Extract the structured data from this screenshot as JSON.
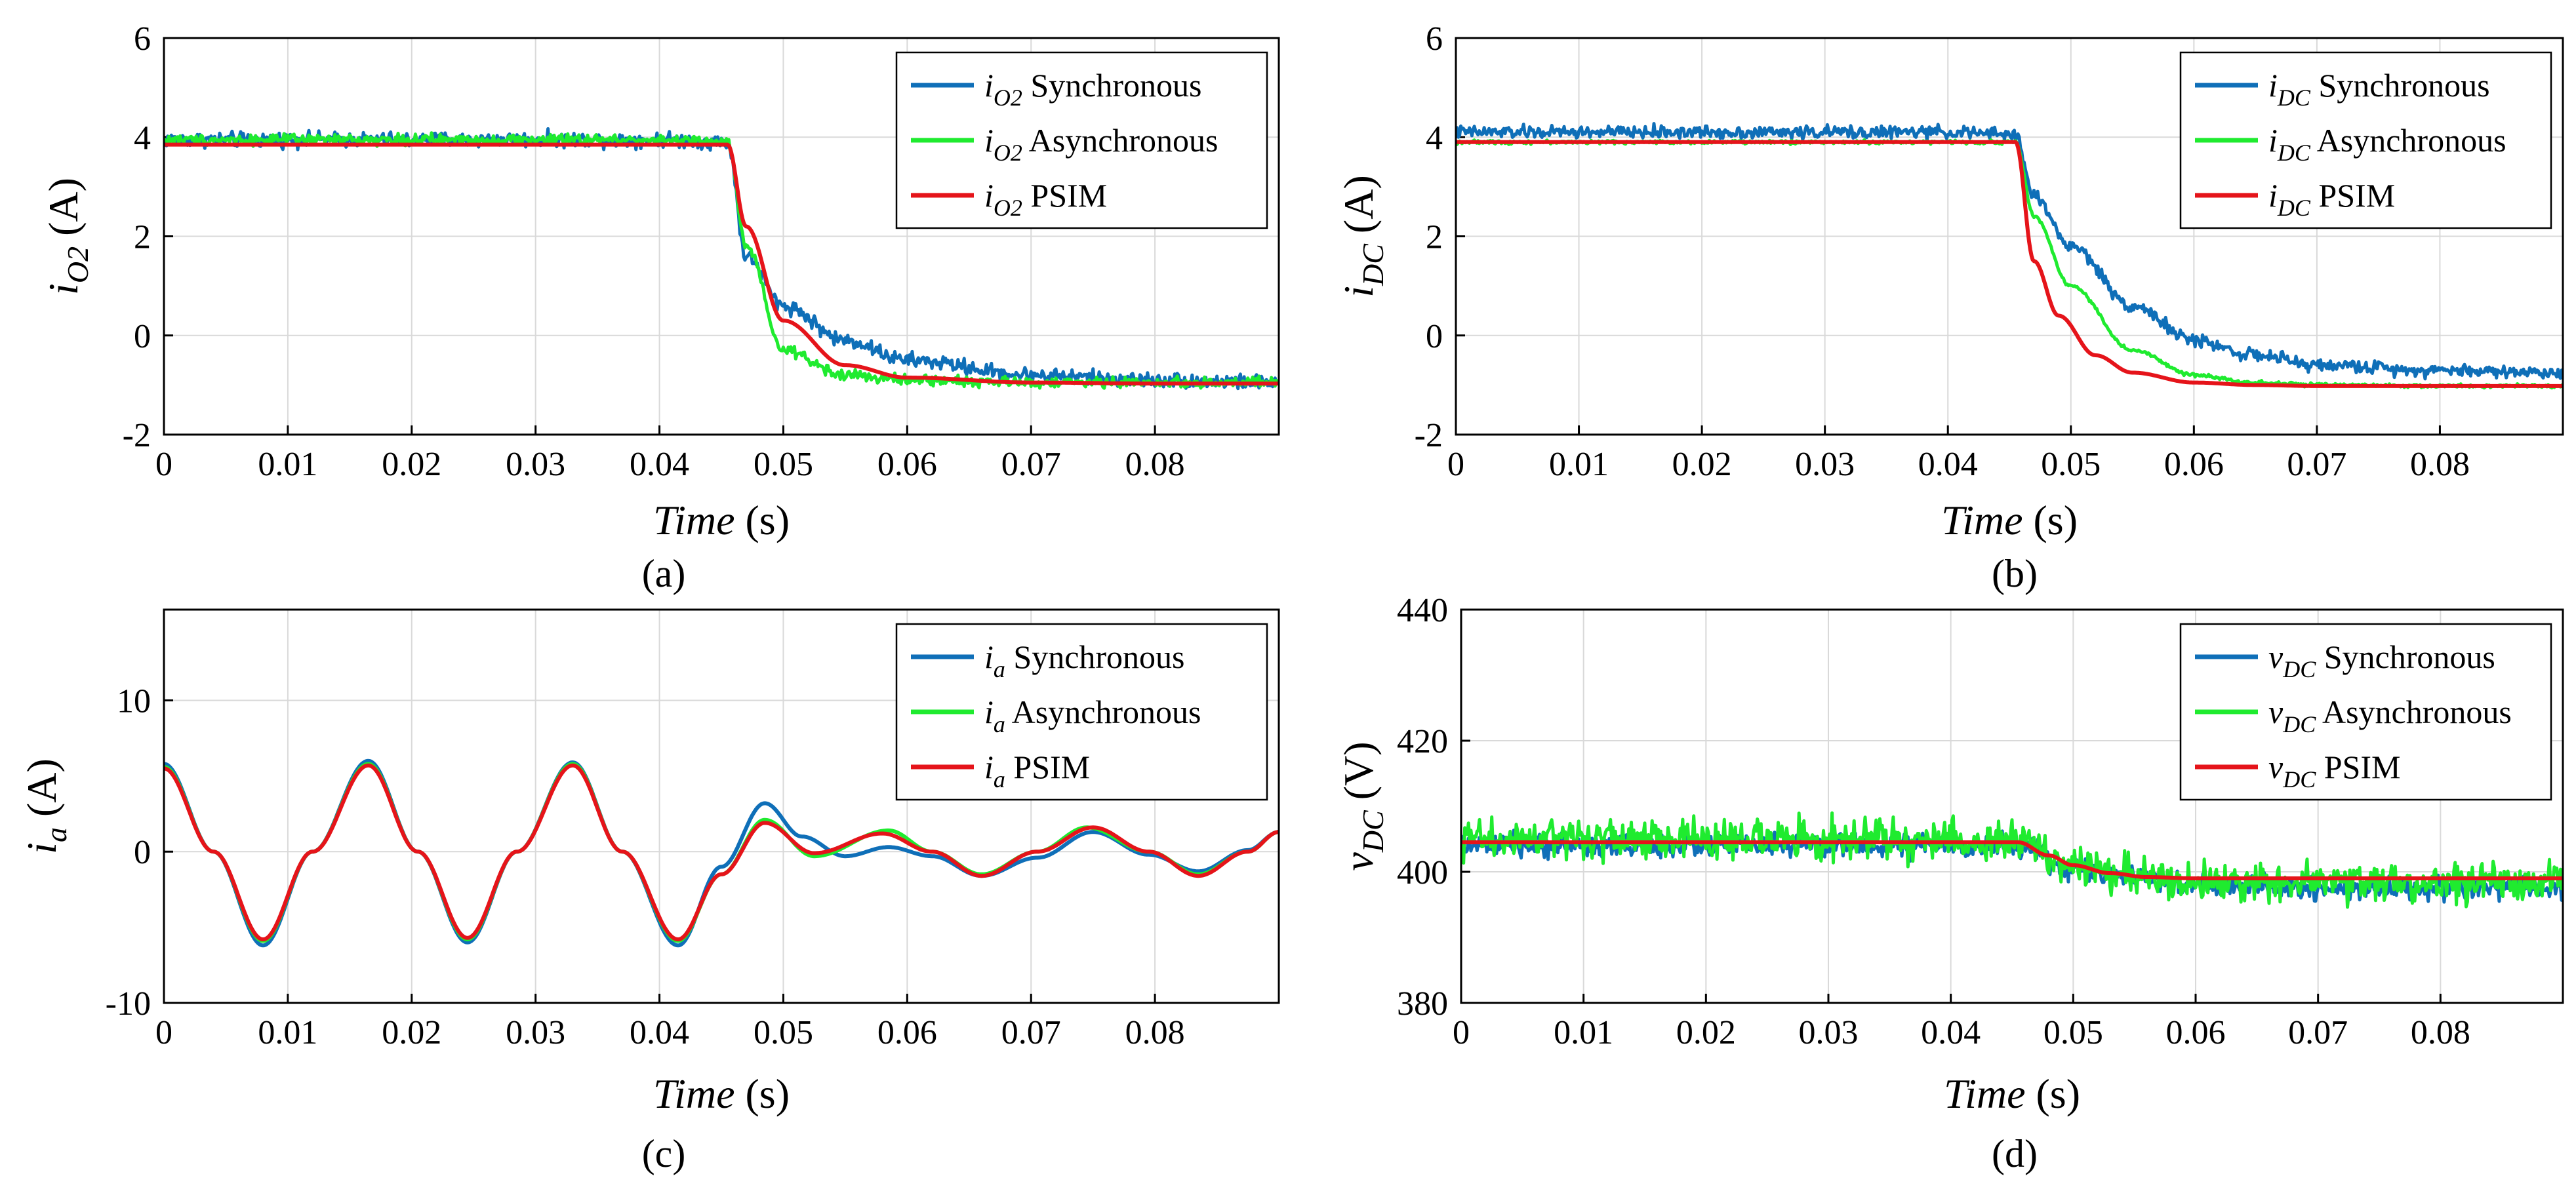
{
  "colors": {
    "synchronous": "#0F6FB8",
    "asynchronous": "#1FEB2F",
    "psim": "#E5141A"
  },
  "chart_data": [
    {
      "type": "line",
      "panel": "a",
      "caption": "(a)",
      "ylabel_main": "i",
      "ylabel_sub": "O2",
      "ylabel_unit": " (A)",
      "xlabel_main": "Time",
      "xlabel_unit": "  (s)",
      "xlim": [
        0,
        0.09
      ],
      "ylim": [
        -2,
        6
      ],
      "xticks": [
        0,
        0.01,
        0.02,
        0.03,
        0.04,
        0.05,
        0.06,
        0.07,
        0.08
      ],
      "xtick_labels": [
        "0",
        "0.01",
        "0.02",
        "0.03",
        "0.04",
        "0.05",
        "0.06",
        "0.07",
        "0.08"
      ],
      "yticks": [
        -2,
        0,
        2,
        4,
        6
      ],
      "ytick_labels": [
        "-2",
        "0",
        "2",
        "4",
        "6"
      ],
      "grid": true,
      "legend_position": "top-right",
      "series": [
        {
          "name": "Synchronous",
          "legend_var": "i",
          "legend_sub": "O2",
          "legend_text": " Synchronous",
          "color_key": "synchronous",
          "noise": 0.13,
          "x": [
            0,
            0.01,
            0.02,
            0.03,
            0.04,
            0.0455,
            0.047,
            0.05,
            0.055,
            0.06,
            0.07,
            0.08,
            0.09
          ],
          "y": [
            3.95,
            3.95,
            3.95,
            3.95,
            3.95,
            3.9,
            1.6,
            0.6,
            -0.1,
            -0.5,
            -0.8,
            -0.9,
            -0.95
          ]
        },
        {
          "name": "Asynchronous",
          "legend_var": "i",
          "legend_sub": "O2",
          "legend_text": " Asynchronous",
          "color_key": "asynchronous",
          "noise": 0.09,
          "x": [
            0,
            0.01,
            0.02,
            0.03,
            0.04,
            0.0455,
            0.047,
            0.05,
            0.055,
            0.06,
            0.07,
            0.08,
            0.09
          ],
          "y": [
            3.95,
            3.95,
            3.95,
            3.95,
            3.95,
            3.9,
            1.8,
            -0.3,
            -0.8,
            -0.9,
            -0.95,
            -0.95,
            -0.95
          ]
        },
        {
          "name": "PSIM",
          "legend_var": "i",
          "legend_sub": "O2",
          "legend_text": " PSIM",
          "color_key": "psim",
          "noise": 0,
          "x": [
            0,
            0.01,
            0.02,
            0.03,
            0.04,
            0.0455,
            0.047,
            0.05,
            0.055,
            0.06,
            0.07,
            0.08,
            0.09
          ],
          "y": [
            3.85,
            3.85,
            3.85,
            3.85,
            3.85,
            3.85,
            2.2,
            0.3,
            -0.6,
            -0.85,
            -0.95,
            -0.97,
            -0.97
          ]
        }
      ]
    },
    {
      "type": "line",
      "panel": "b",
      "caption": "(b)",
      "ylabel_main": "i",
      "ylabel_sub": "DC",
      "ylabel_unit": " (A)",
      "xlabel_main": "Time",
      "xlabel_unit": " (s)",
      "xlim": [
        0,
        0.09
      ],
      "ylim": [
        -2,
        6
      ],
      "xticks": [
        0,
        0.01,
        0.02,
        0.03,
        0.04,
        0.05,
        0.06,
        0.07,
        0.08
      ],
      "xtick_labels": [
        "0",
        "0.01",
        "0.02",
        "0.03",
        "0.04",
        "0.05",
        "0.06",
        "0.07",
        "0.08"
      ],
      "yticks": [
        -2,
        0,
        2,
        4,
        6
      ],
      "ytick_labels": [
        "-2",
        "0",
        "2",
        "4",
        "6"
      ],
      "grid": true,
      "legend_position": "top-right",
      "series": [
        {
          "name": "Synchronous",
          "legend_var": "i",
          "legend_sub": "DC",
          "legend_text": " Synchronous",
          "color_key": "synchronous",
          "noise": 0.11,
          "x": [
            0,
            0.01,
            0.02,
            0.03,
            0.04,
            0.0455,
            0.047,
            0.05,
            0.055,
            0.06,
            0.065,
            0.07,
            0.08,
            0.09
          ],
          "y": [
            4.1,
            4.1,
            4.1,
            4.1,
            4.1,
            4.05,
            2.8,
            1.8,
            0.6,
            -0.1,
            -0.4,
            -0.6,
            -0.7,
            -0.75
          ]
        },
        {
          "name": "Asynchronous",
          "legend_var": "i",
          "legend_sub": "DC",
          "legend_text": " Asynchronous",
          "color_key": "asynchronous",
          "noise": 0.03,
          "x": [
            0,
            0.01,
            0.02,
            0.03,
            0.04,
            0.0455,
            0.047,
            0.05,
            0.055,
            0.06,
            0.065,
            0.07,
            0.08,
            0.09
          ],
          "y": [
            3.9,
            3.9,
            3.9,
            3.9,
            3.9,
            3.9,
            2.4,
            1.0,
            -0.3,
            -0.8,
            -0.95,
            -1.0,
            -1.02,
            -1.02
          ]
        },
        {
          "name": "PSIM",
          "legend_var": "i",
          "legend_sub": "DC",
          "legend_text": " PSIM",
          "color_key": "psim",
          "noise": 0,
          "x": [
            0,
            0.01,
            0.02,
            0.03,
            0.04,
            0.0455,
            0.047,
            0.049,
            0.052,
            0.055,
            0.06,
            0.065,
            0.07,
            0.08,
            0.09
          ],
          "y": [
            3.9,
            3.9,
            3.9,
            3.9,
            3.9,
            3.9,
            1.5,
            0.4,
            -0.4,
            -0.75,
            -0.95,
            -1.0,
            -1.02,
            -1.02,
            -1.02
          ]
        }
      ]
    },
    {
      "type": "line",
      "panel": "c",
      "caption": "(c)",
      "ylabel_main": "i",
      "ylabel_sub": "a",
      "ylabel_unit": " (A)",
      "xlabel_main": "Time",
      "xlabel_unit": " (s)",
      "xlim": [
        0,
        0.09
      ],
      "ylim": [
        -10,
        16
      ],
      "xticks": [
        0,
        0.01,
        0.02,
        0.03,
        0.04,
        0.05,
        0.06,
        0.07,
        0.08
      ],
      "xtick_labels": [
        "0",
        "0.01",
        "0.02",
        "0.03",
        "0.04",
        "0.05",
        "0.06",
        "0.07",
        "0.08"
      ],
      "yticks": [
        -10,
        0,
        10
      ],
      "ytick_labels": [
        "-10",
        "0",
        "10"
      ],
      "grid": true,
      "legend_position": "top-right",
      "series": [
        {
          "name": "Synchronous",
          "legend_var": "i",
          "legend_sub": "a",
          "legend_text": " Synchronous",
          "color_key": "synchronous",
          "noise": 0,
          "x": [
            0,
            0.004,
            0.008,
            0.012,
            0.0165,
            0.0205,
            0.0245,
            0.0285,
            0.033,
            0.037,
            0.0415,
            0.045,
            0.0485,
            0.0515,
            0.055,
            0.0585,
            0.062,
            0.066,
            0.0705,
            0.075,
            0.0795,
            0.0835,
            0.0875,
            0.09
          ],
          "y": [
            5.8,
            0,
            -6.2,
            0,
            6.0,
            0,
            -6.0,
            0,
            5.9,
            0,
            -6.2,
            -1.0,
            3.2,
            1.0,
            -0.3,
            0.3,
            -0.3,
            -1.6,
            -0.4,
            1.3,
            -0.2,
            -1.3,
            0.1,
            1.3
          ]
        },
        {
          "name": "Asynchronous",
          "legend_var": "i",
          "legend_sub": "a",
          "legend_text": "  Asynchronous",
          "color_key": "asynchronous",
          "noise": 0,
          "x": [
            0,
            0.004,
            0.008,
            0.012,
            0.0165,
            0.0205,
            0.0245,
            0.0285,
            0.033,
            0.037,
            0.0415,
            0.045,
            0.0485,
            0.0525,
            0.0585,
            0.062,
            0.066,
            0.0705,
            0.0745,
            0.0795,
            0.0835,
            0.0875,
            0.09
          ],
          "y": [
            5.6,
            0,
            -5.9,
            0,
            5.8,
            0,
            -5.8,
            0,
            5.8,
            0,
            -5.9,
            -1.5,
            2.1,
            -0.3,
            1.4,
            0,
            -1.5,
            0,
            1.6,
            0,
            -1.5,
            0,
            1.3
          ]
        },
        {
          "name": "PSIM",
          "legend_var": "i",
          "legend_sub": "a",
          "legend_text": " PSIM",
          "color_key": "psim",
          "noise": 0,
          "x": [
            0,
            0.004,
            0.008,
            0.012,
            0.0165,
            0.0205,
            0.0245,
            0.0285,
            0.033,
            0.037,
            0.0415,
            0.045,
            0.0485,
            0.0525,
            0.058,
            0.062,
            0.066,
            0.0705,
            0.075,
            0.0795,
            0.0835,
            0.0875,
            0.09
          ],
          "y": [
            5.5,
            0,
            -5.8,
            0,
            5.7,
            0,
            -5.7,
            0,
            5.7,
            0,
            -5.8,
            -1.5,
            1.9,
            -0.1,
            1.2,
            0,
            -1.6,
            0,
            1.6,
            0,
            -1.6,
            0,
            1.3
          ]
        }
      ]
    },
    {
      "type": "line",
      "panel": "d",
      "caption": "(d)",
      "ylabel_main": "v",
      "ylabel_sub": "DC",
      "ylabel_unit": " (V)",
      "xlabel_main": "Time",
      "xlabel_unit": " (s)",
      "xlim": [
        0,
        0.09
      ],
      "ylim": [
        380,
        440
      ],
      "xticks": [
        0,
        0.01,
        0.02,
        0.03,
        0.04,
        0.05,
        0.06,
        0.07,
        0.08
      ],
      "xtick_labels": [
        "0",
        "0.01",
        "0.02",
        "0.03",
        "0.04",
        "0.05",
        "0.06",
        "0.07",
        "0.08"
      ],
      "yticks": [
        380,
        400,
        420,
        440
      ],
      "ytick_labels": [
        "380",
        "400",
        "420",
        "440"
      ],
      "grid": true,
      "legend_position": "top-right",
      "series": [
        {
          "name": "Synchronous",
          "legend_var": "v",
          "legend_sub": "DC",
          "legend_text": " Synchronous",
          "color_key": "synchronous",
          "noise": 1.5,
          "x": [
            0,
            0.01,
            0.02,
            0.03,
            0.04,
            0.0455,
            0.05,
            0.055,
            0.06,
            0.07,
            0.08,
            0.09
          ],
          "y": [
            404,
            404,
            404,
            404,
            404,
            404,
            400.5,
            399,
            398,
            397.5,
            397.5,
            397.5
          ]
        },
        {
          "name": "Asynchronous",
          "legend_var": "v",
          "legend_sub": "DC",
          "legend_text": " Asynchronous",
          "color_key": "asynchronous",
          "noise": 2.6,
          "x": [
            0,
            0.01,
            0.02,
            0.03,
            0.04,
            0.0455,
            0.05,
            0.055,
            0.06,
            0.07,
            0.08,
            0.09
          ],
          "y": [
            405,
            405,
            405,
            405,
            405,
            404.5,
            401,
            399.5,
            398.5,
            398.5,
            398.5,
            398.5
          ]
        },
        {
          "name": "PSIM",
          "legend_var": "v",
          "legend_sub": "DC",
          "legend_text": " PSIM",
          "color_key": "psim",
          "noise": 0,
          "x": [
            0,
            0.01,
            0.02,
            0.03,
            0.04,
            0.0455,
            0.048,
            0.05,
            0.053,
            0.056,
            0.06,
            0.07,
            0.08,
            0.09
          ],
          "y": [
            404.5,
            404.5,
            404.5,
            404.5,
            404.5,
            404.5,
            402.5,
            401,
            399.8,
            399.2,
            399,
            399,
            399,
            399
          ]
        }
      ]
    }
  ]
}
